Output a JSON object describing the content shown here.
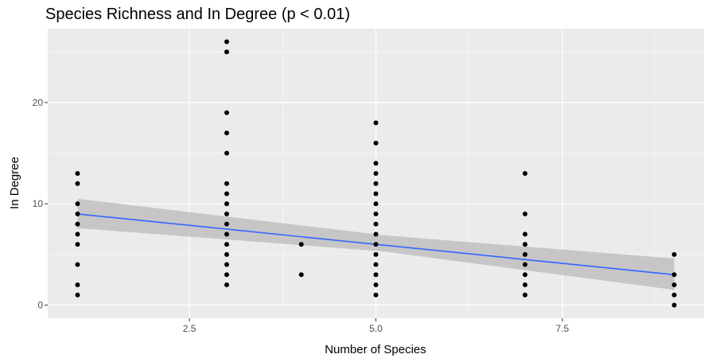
{
  "chart_data": {
    "type": "scatter",
    "title": "Species Richness and In Degree (p < 0.01)",
    "xlabel": "Number of Species",
    "ylabel": "In Degree",
    "xlim": [
      0.6,
      9.4
    ],
    "ylim": [
      -1.3,
      27.3
    ],
    "x_ticks": [
      2.5,
      5.0,
      7.5
    ],
    "x_tick_labels": [
      "2.5",
      "5.0",
      "7.5"
    ],
    "x_minor_ticks": [
      1.25,
      3.75,
      6.25,
      8.75
    ],
    "y_ticks": [
      0,
      10,
      20
    ],
    "y_tick_labels": [
      "0",
      "10",
      "20"
    ],
    "y_minor_ticks": [
      5,
      15,
      25
    ],
    "grid": true,
    "points": [
      {
        "x": 1,
        "y": 1
      },
      {
        "x": 1,
        "y": 2
      },
      {
        "x": 1,
        "y": 4
      },
      {
        "x": 1,
        "y": 6
      },
      {
        "x": 1,
        "y": 7
      },
      {
        "x": 1,
        "y": 8
      },
      {
        "x": 1,
        "y": 9
      },
      {
        "x": 1,
        "y": 10
      },
      {
        "x": 1,
        "y": 12
      },
      {
        "x": 1,
        "y": 13
      },
      {
        "x": 3,
        "y": 2
      },
      {
        "x": 3,
        "y": 3
      },
      {
        "x": 3,
        "y": 4
      },
      {
        "x": 3,
        "y": 5
      },
      {
        "x": 3,
        "y": 6
      },
      {
        "x": 3,
        "y": 7
      },
      {
        "x": 3,
        "y": 8
      },
      {
        "x": 3,
        "y": 9
      },
      {
        "x": 3,
        "y": 10
      },
      {
        "x": 3,
        "y": 11
      },
      {
        "x": 3,
        "y": 12
      },
      {
        "x": 3,
        "y": 15
      },
      {
        "x": 3,
        "y": 17
      },
      {
        "x": 3,
        "y": 19
      },
      {
        "x": 3,
        "y": 25
      },
      {
        "x": 3,
        "y": 26
      },
      {
        "x": 4,
        "y": 3
      },
      {
        "x": 4,
        "y": 6
      },
      {
        "x": 5,
        "y": 1
      },
      {
        "x": 5,
        "y": 2
      },
      {
        "x": 5,
        "y": 3
      },
      {
        "x": 5,
        "y": 4
      },
      {
        "x": 5,
        "y": 5
      },
      {
        "x": 5,
        "y": 6
      },
      {
        "x": 5,
        "y": 7
      },
      {
        "x": 5,
        "y": 8
      },
      {
        "x": 5,
        "y": 9
      },
      {
        "x": 5,
        "y": 10
      },
      {
        "x": 5,
        "y": 11
      },
      {
        "x": 5,
        "y": 12
      },
      {
        "x": 5,
        "y": 13
      },
      {
        "x": 5,
        "y": 14
      },
      {
        "x": 5,
        "y": 16
      },
      {
        "x": 5,
        "y": 18
      },
      {
        "x": 7,
        "y": 1
      },
      {
        "x": 7,
        "y": 2
      },
      {
        "x": 7,
        "y": 3
      },
      {
        "x": 7,
        "y": 4
      },
      {
        "x": 7,
        "y": 5
      },
      {
        "x": 7,
        "y": 6
      },
      {
        "x": 7,
        "y": 7
      },
      {
        "x": 7,
        "y": 9
      },
      {
        "x": 7,
        "y": 13
      },
      {
        "x": 9,
        "y": 0
      },
      {
        "x": 9,
        "y": 1
      },
      {
        "x": 9,
        "y": 2
      },
      {
        "x": 9,
        "y": 3
      },
      {
        "x": 9,
        "y": 5
      }
    ],
    "trend_line": {
      "method": "linear",
      "x": [
        1,
        9
      ],
      "y": [
        9.0,
        3.0
      ],
      "ci_lower": [
        7.6,
        1.5
      ],
      "ci_upper": [
        10.5,
        4.6
      ],
      "ci_mid": {
        "x": 5.1,
        "lower": 5.3,
        "upper": 6.9
      }
    },
    "colors": {
      "panel_background": "#ebebeb",
      "grid_major": "#ffffff",
      "point": "#000000",
      "trend_line": "#3366ff",
      "confidence_band": "#bfbfbf",
      "tick_label": "#4d4d4d",
      "tick_mark": "#333333"
    }
  }
}
